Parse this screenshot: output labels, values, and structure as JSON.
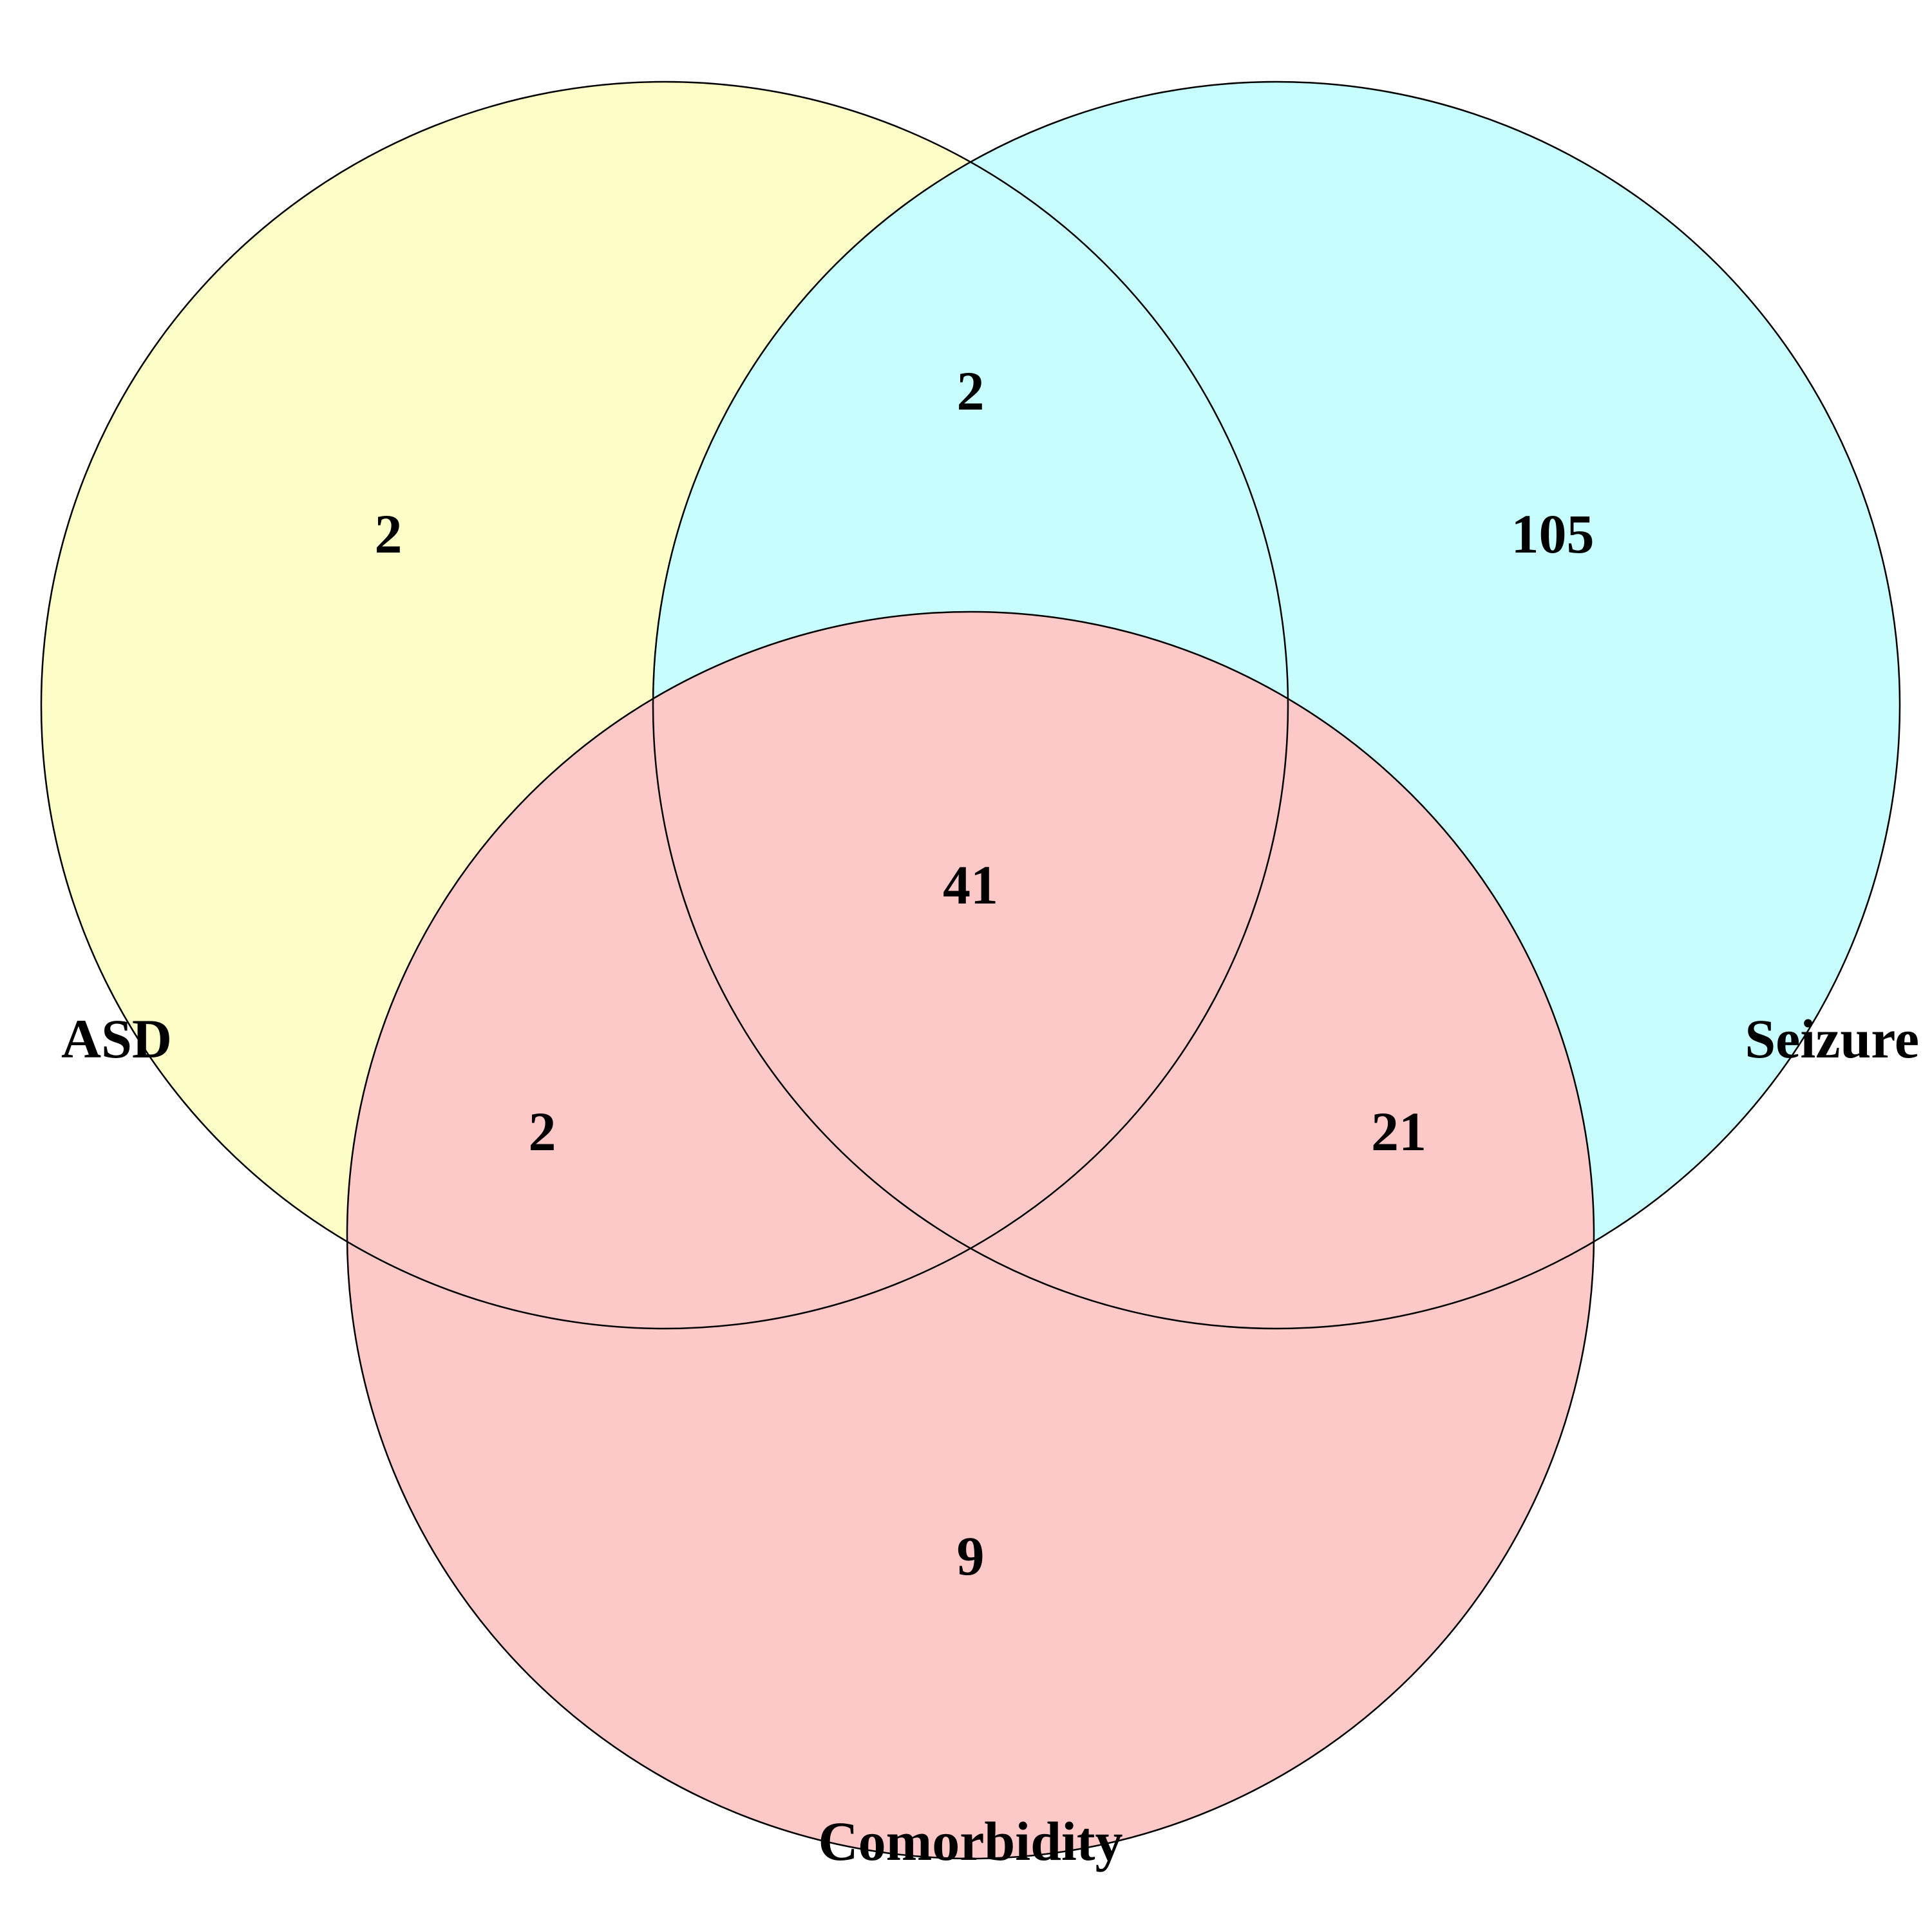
{
  "sets": {
    "asd": {
      "label": "ASD",
      "color": "#FDFDC8"
    },
    "seizure": {
      "label": "Seizure",
      "color": "#C8FDFD"
    },
    "comorbidity": {
      "label": "Comorbidity",
      "color": "#FCC8C8"
    }
  },
  "regions": {
    "asd_only": "2",
    "seizure_only": "105",
    "comorbidity_only": "9",
    "asd_seizure": "2",
    "asd_comorbidity": "2",
    "seizure_comorbidity": "21",
    "all_three": "41"
  },
  "outline_color": "#000000"
}
